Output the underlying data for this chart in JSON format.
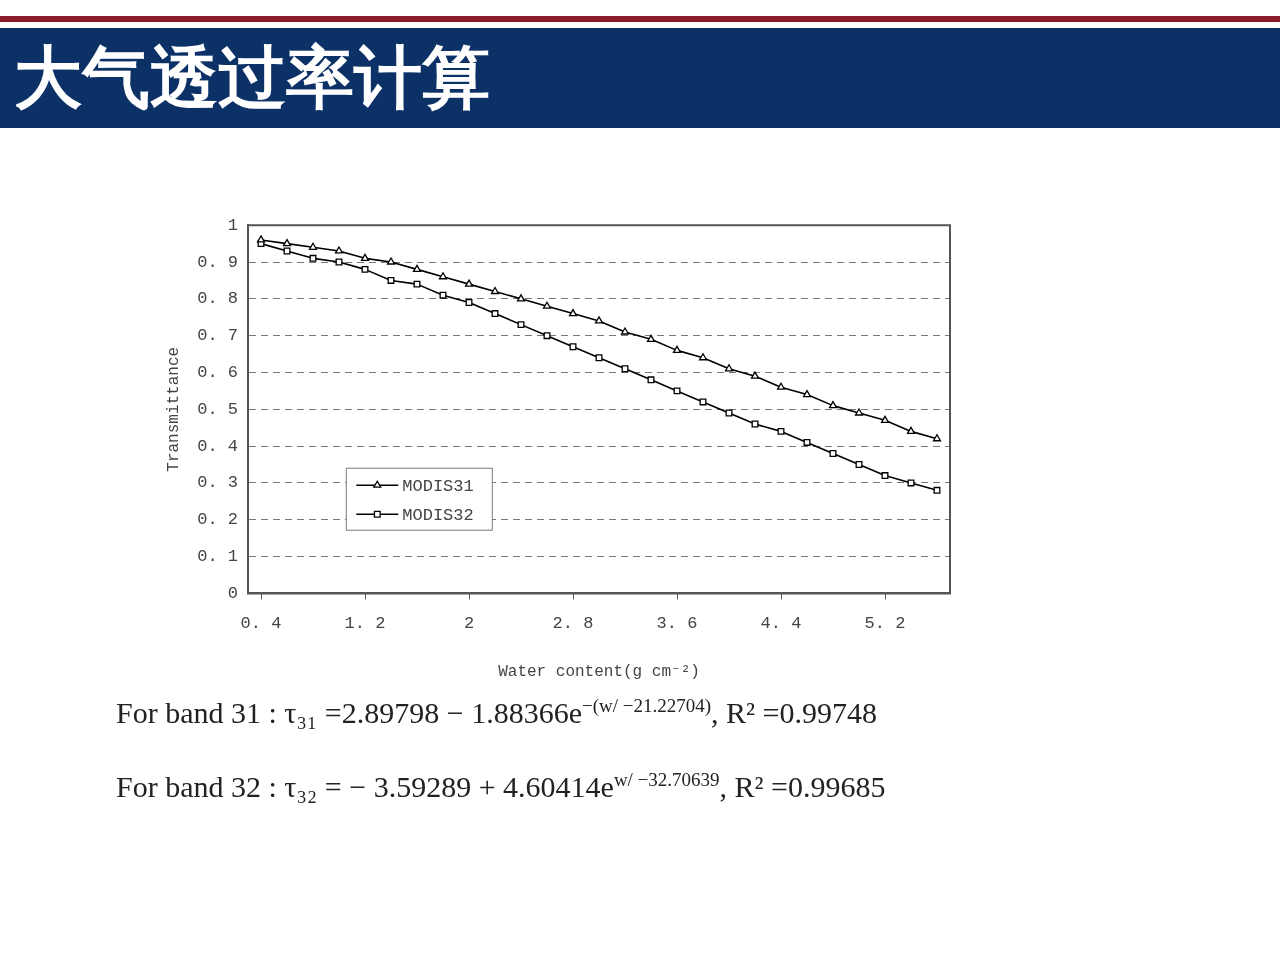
{
  "chart_data": {
    "type": "line",
    "title": "大气透过率计算",
    "xlabel": "Water content(g cm⁻²)",
    "ylabel": "Transmittance",
    "x": [
      0.4,
      0.6,
      0.8,
      1.0,
      1.2,
      1.4,
      1.6,
      1.8,
      2.0,
      2.2,
      2.4,
      2.6,
      2.8,
      3.0,
      3.2,
      3.4,
      3.6,
      3.8,
      4.0,
      4.2,
      4.4,
      4.6,
      4.8,
      5.0,
      5.2,
      5.4,
      5.6
    ],
    "series": [
      {
        "name": "MODIS31",
        "color": "#000000",
        "marker": "triangle",
        "values": [
          0.96,
          0.95,
          0.94,
          0.93,
          0.91,
          0.9,
          0.88,
          0.86,
          0.84,
          0.82,
          0.8,
          0.78,
          0.76,
          0.74,
          0.71,
          0.69,
          0.66,
          0.64,
          0.61,
          0.59,
          0.56,
          0.54,
          0.51,
          0.49,
          0.47,
          0.44,
          0.42
        ]
      },
      {
        "name": "MODIS32",
        "color": "#000000",
        "marker": "square",
        "values": [
          0.95,
          0.93,
          0.91,
          0.9,
          0.88,
          0.85,
          0.84,
          0.81,
          0.79,
          0.76,
          0.73,
          0.7,
          0.67,
          0.64,
          0.61,
          0.58,
          0.55,
          0.52,
          0.49,
          0.46,
          0.44,
          0.41,
          0.38,
          0.35,
          0.32,
          0.3,
          0.28
        ]
      }
    ],
    "xlim": [
      0.3,
      5.7
    ],
    "xticks": [
      0.4,
      1.2,
      2,
      2.8,
      3.6,
      4.4,
      5.2
    ],
    "ylim": [
      0,
      1
    ],
    "yticks": [
      0,
      0.1,
      0.2,
      0.3,
      0.4,
      0.5,
      0.6,
      0.7,
      0.8,
      0.9,
      1
    ],
    "grid": "y",
    "legend": "bottom left",
    "line_style": "solid",
    "annotations": [
      "For band 31 : τ₃₁ =2.89798 − 1.88366e$^{−(w/ −21.22704)}$, R² =0.99748",
      "For band 32 : τ₃₂ = − 3.59289 + 4.60414e$^{w/ −32.70639}$, R² =0.99685"
    ]
  }
}
